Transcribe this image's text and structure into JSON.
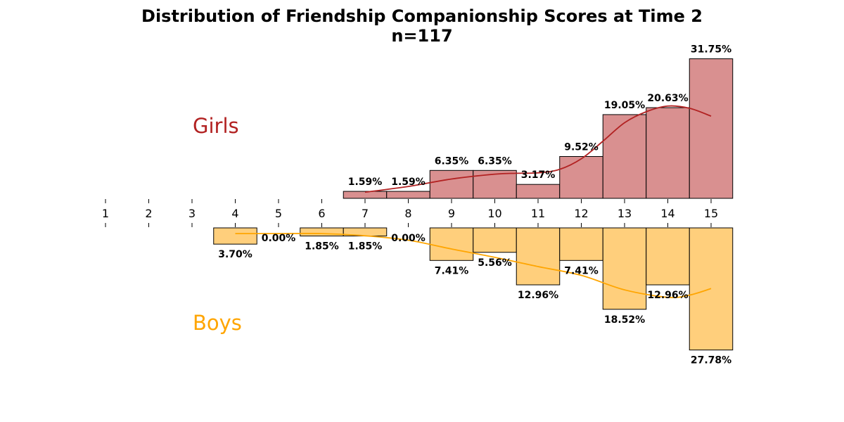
{
  "chart_data": {
    "type": "bar",
    "title": "Distribution of Friendship Companionship Scores at Time 2",
    "subtitle": "n=117",
    "x_ticks": [
      "1",
      "2",
      "3",
      "4",
      "5",
      "6",
      "7",
      "8",
      "9",
      "10",
      "11",
      "12",
      "13",
      "14",
      "15"
    ],
    "xlim": [
      0.5,
      15.5
    ],
    "ylim_top": [
      0,
      32
    ],
    "ylim_bottom": [
      0,
      32
    ],
    "grid": false,
    "series": [
      {
        "name": "Girls",
        "position": "top",
        "color": "#d99090",
        "line_color": "#b22222",
        "x": [
          7,
          8,
          9,
          10,
          11,
          12,
          13,
          14,
          15
        ],
        "values": [
          1.59,
          1.59,
          6.35,
          6.35,
          3.17,
          9.52,
          19.05,
          20.63,
          31.75
        ],
        "labels": [
          "1.59%",
          "1.59%",
          "6.35%",
          "6.35%",
          "3.17%",
          "9.52%",
          "19.05%",
          "20.63%",
          "31.75%"
        ],
        "kde_x": [
          7,
          8,
          9,
          10,
          10.5,
          11,
          11.5,
          12,
          12.5,
          13,
          13.5,
          14,
          14.5,
          15
        ],
        "kde_y": [
          1.4,
          2.7,
          4.4,
          5.5,
          5.7,
          5.8,
          6.6,
          9.0,
          13.0,
          17.2,
          19.7,
          21.0,
          20.5,
          18.7
        ]
      },
      {
        "name": "Boys",
        "position": "bottom",
        "color": "#ffcf7c",
        "line_color": "#ffa500",
        "x": [
          4,
          5,
          6,
          7,
          8,
          9,
          10,
          11,
          12,
          13,
          14,
          15
        ],
        "values": [
          3.7,
          0.0,
          1.85,
          1.85,
          0.0,
          7.41,
          5.56,
          12.96,
          7.41,
          18.52,
          12.96,
          27.78
        ],
        "labels": [
          "3.70%",
          "0.00%",
          "1.85%",
          "1.85%",
          "0.00%",
          "7.41%",
          "5.56%",
          "12.96%",
          "7.41%",
          "18.52%",
          "12.96%",
          "27.78%"
        ],
        "kde_x": [
          4,
          5,
          6,
          7,
          8,
          9,
          10,
          11,
          12,
          13,
          14,
          14.5,
          15
        ],
        "kde_y": [
          1.3,
          1.3,
          1.3,
          1.8,
          2.8,
          4.8,
          6.7,
          8.8,
          10.8,
          14.1,
          15.8,
          15.3,
          13.8
        ]
      }
    ]
  }
}
